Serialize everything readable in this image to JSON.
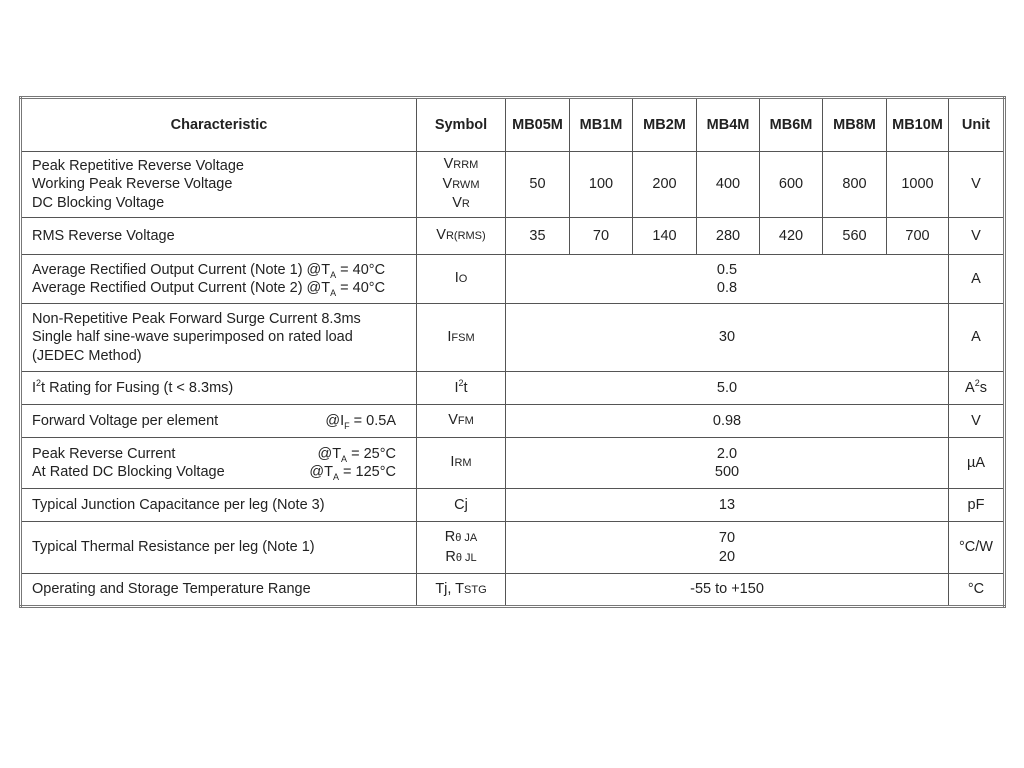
{
  "header": {
    "characteristic": "Characteristic",
    "symbol": "Symbol",
    "parts": [
      "MB05M",
      "MB1M",
      "MB2M",
      "MB4M",
      "MB6M",
      "MB8M",
      "MB10M"
    ],
    "unit": "Unit"
  },
  "rows": [
    {
      "h": 66,
      "char": [
        {
          "left": [
            {
              "t": "Peak Repetitive Reverse Voltage"
            }
          ]
        },
        {
          "left": [
            {
              "t": "Working Peak Reverse Voltage"
            }
          ]
        },
        {
          "left": [
            {
              "t": "DC Blocking Voltage"
            }
          ]
        }
      ],
      "sym": [
        [
          {
            "t": "V"
          },
          {
            "t": "RRM",
            "c": "sm"
          }
        ],
        [
          {
            "t": "V"
          },
          {
            "t": "RWM",
            "c": "sm"
          }
        ],
        [
          {
            "t": "V"
          },
          {
            "t": "R",
            "c": "sm"
          }
        ]
      ],
      "values": [
        "50",
        "100",
        "200",
        "400",
        "600",
        "800",
        "1000"
      ],
      "unit": [
        {
          "t": "V"
        }
      ]
    },
    {
      "h": 37,
      "char": [
        {
          "left": [
            {
              "t": "RMS Reverse Voltage"
            }
          ]
        }
      ],
      "sym": [
        [
          {
            "t": "V"
          },
          {
            "t": "R(RMS)",
            "c": "sm"
          }
        ]
      ],
      "values": [
        "35",
        "70",
        "140",
        "280",
        "420",
        "560",
        "700"
      ],
      "unit": [
        {
          "t": "V"
        }
      ]
    },
    {
      "h": 49,
      "char": [
        {
          "left": [
            {
              "t": "Average Rectified Output Current (Note 1) @T"
            },
            {
              "t": "A",
              "c": "sub"
            },
            {
              "t": " = 40°C"
            }
          ]
        },
        {
          "left": [
            {
              "t": "Average Rectified Output Current (Note 2) @T"
            },
            {
              "t": "A",
              "c": "sub"
            },
            {
              "t": " = 40°C"
            }
          ]
        }
      ],
      "sym": [
        [
          {
            "t": "I"
          },
          {
            "t": "O",
            "c": "sm"
          }
        ]
      ],
      "span": [
        "0.5",
        "0.8"
      ],
      "unit": [
        {
          "t": "A"
        }
      ]
    },
    {
      "h": 68,
      "char": [
        {
          "left": [
            {
              "t": "Non-Repetitive Peak Forward Surge Current 8.3ms"
            }
          ]
        },
        {
          "left": [
            {
              "t": "Single half sine-wave superimposed on rated load"
            }
          ]
        },
        {
          "left": [
            {
              "t": "(JEDEC Method)"
            }
          ]
        }
      ],
      "sym": [
        [
          {
            "t": "I"
          },
          {
            "t": "FSM",
            "c": "sm"
          }
        ]
      ],
      "span": [
        "30"
      ],
      "unit": [
        {
          "t": "A"
        }
      ]
    },
    {
      "h": 33,
      "char": [
        {
          "left": [
            {
              "t": "I"
            },
            {
              "t": "2",
              "c": "sup"
            },
            {
              "t": "t Rating for Fusing (t < 8.3ms)"
            }
          ]
        }
      ],
      "sym": [
        [
          {
            "t": "I"
          },
          {
            "t": "2",
            "c": "sup"
          },
          {
            "t": "t"
          }
        ]
      ],
      "span": [
        "5.0"
      ],
      "unit": [
        {
          "t": "A"
        },
        {
          "t": "2",
          "c": "sup"
        },
        {
          "t": "s"
        }
      ]
    },
    {
      "h": 33,
      "char": [
        {
          "left": [
            {
              "t": "Forward Voltage per element"
            }
          ],
          "right": [
            {
              "t": "@I"
            },
            {
              "t": "F",
              "c": "sub"
            },
            {
              "t": " = 0.5A"
            }
          ]
        }
      ],
      "sym": [
        [
          {
            "t": "V"
          },
          {
            "t": "FM",
            "c": "sm"
          }
        ]
      ],
      "span": [
        "0.98"
      ],
      "unit": [
        {
          "t": "V"
        }
      ]
    },
    {
      "h": 51,
      "char": [
        {
          "left": [
            {
              "t": "Peak Reverse Current"
            }
          ],
          "right": [
            {
              "t": "@T"
            },
            {
              "t": "A",
              "c": "sub"
            },
            {
              "t": " = 25°C"
            }
          ]
        },
        {
          "left": [
            {
              "t": "At Rated DC Blocking Voltage"
            }
          ],
          "right": [
            {
              "t": "@T"
            },
            {
              "t": "A",
              "c": "sub"
            },
            {
              "t": " = 125°C"
            }
          ]
        }
      ],
      "sym": [
        [
          {
            "t": "I"
          },
          {
            "t": "RM",
            "c": "sm"
          }
        ]
      ],
      "span": [
        "2.0",
        "500"
      ],
      "unit": [
        {
          "t": "µA"
        }
      ]
    },
    {
      "h": 33,
      "char": [
        {
          "left": [
            {
              "t": "Typical Junction Capacitance per leg (Note 3)"
            }
          ]
        }
      ],
      "sym": [
        [
          {
            "t": "Cj"
          }
        ]
      ],
      "span": [
        "13"
      ],
      "unit": [
        {
          "t": "pF"
        }
      ]
    },
    {
      "h": 52,
      "char": [
        {
          "left": [
            {
              "t": "Typical Thermal Resistance per leg (Note 1)"
            }
          ]
        }
      ],
      "sym": [
        [
          {
            "t": "R"
          },
          {
            "t": "θ JA",
            "c": "sm"
          }
        ],
        [
          {
            "t": "R"
          },
          {
            "t": "θ JL",
            "c": "sm"
          }
        ]
      ],
      "span": [
        "70",
        "20"
      ],
      "unit": [
        {
          "t": "°C/W"
        }
      ]
    },
    {
      "h": 33,
      "char": [
        {
          "left": [
            {
              "t": "Operating and Storage Temperature Range"
            }
          ]
        }
      ],
      "sym": [
        [
          {
            "t": "Tj, T"
          },
          {
            "t": "STG",
            "c": "sm"
          }
        ]
      ],
      "span": [
        "-55 to +150"
      ],
      "unit": [
        {
          "t": "°C"
        }
      ]
    }
  ]
}
